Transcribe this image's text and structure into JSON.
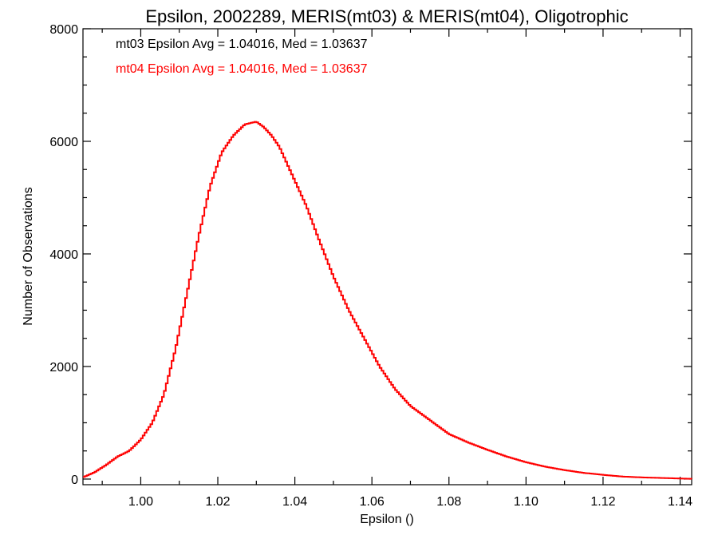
{
  "chart_data": {
    "type": "line",
    "title": "Epsilon, 2002289, MERIS(mt03) & MERIS(mt04), Oligotrophic",
    "xlabel": "Epsilon ()",
    "ylabel": "Number of Observations",
    "xlim": [
      0.985,
      1.143
    ],
    "ylim": [
      -100,
      8000
    ],
    "x_ticks": [
      "1.00",
      "1.02",
      "1.04",
      "1.06",
      "1.08",
      "1.10",
      "1.12",
      "1.14"
    ],
    "y_ticks": [
      "0",
      "2000",
      "4000",
      "6000",
      "8000"
    ],
    "grid": false,
    "annotations": [
      {
        "text": "mt03 Epsilon Avg = 1.04016, Med = 1.03637",
        "color": "#000000"
      },
      {
        "text": "mt04 Epsilon Avg = 1.04016, Med = 1.03637",
        "color": "#ff0000"
      }
    ],
    "series": [
      {
        "color": "#ff0000",
        "x": [
          0.985,
          0.988,
          0.991,
          0.994,
          0.997,
          1.0,
          1.003,
          1.006,
          1.009,
          1.012,
          1.015,
          1.018,
          1.021,
          1.024,
          1.027,
          1.03,
          1.032,
          1.034,
          1.036,
          1.038,
          1.04,
          1.043,
          1.046,
          1.05,
          1.054,
          1.058,
          1.062,
          1.066,
          1.07,
          1.075,
          1.08,
          1.085,
          1.09,
          1.095,
          1.1,
          1.105,
          1.11,
          1.115,
          1.12,
          1.125,
          1.13,
          1.135,
          1.14,
          1.143
        ],
        "y": [
          30,
          120,
          250,
          400,
          500,
          700,
          1000,
          1500,
          2300,
          3300,
          4300,
          5200,
          5800,
          6100,
          6300,
          6350,
          6250,
          6100,
          5900,
          5600,
          5300,
          4850,
          4300,
          3600,
          3000,
          2500,
          2000,
          1600,
          1300,
          1050,
          800,
          650,
          520,
          400,
          300,
          220,
          160,
          110,
          75,
          45,
          30,
          20,
          10,
          5
        ]
      }
    ]
  }
}
